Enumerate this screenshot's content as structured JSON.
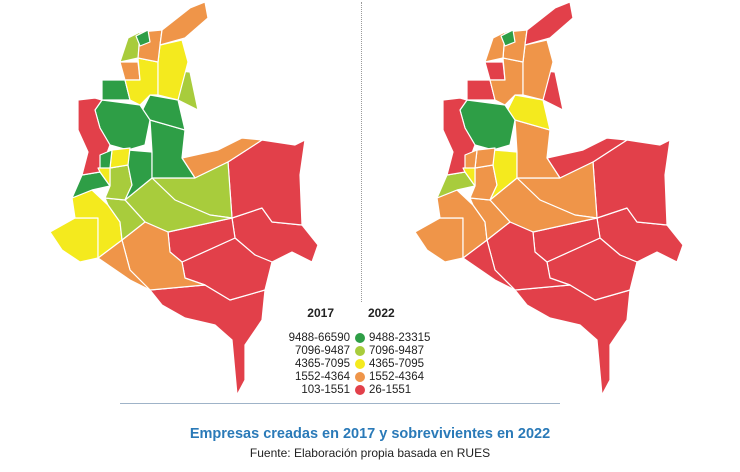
{
  "colors": {
    "dark_green": "#2e9e46",
    "light_green": "#a8cc3c",
    "yellow": "#f4ea1e",
    "orange": "#ef9549",
    "red": "#e2404a",
    "border": "#ffffff",
    "divider": "#9fb3c8",
    "caption": "#2a7ab8"
  },
  "legend": {
    "year_left": "2017",
    "year_right": "2022",
    "rows": [
      {
        "range_2017": "9488-66590",
        "range_2022": "9488-23315",
        "color": "dark_green"
      },
      {
        "range_2017": "7096-9487",
        "range_2022": "7096-9487",
        "color": "light_green"
      },
      {
        "range_2017": "4365-7095",
        "range_2022": "4365-7095",
        "color": "yellow"
      },
      {
        "range_2017": "1552-4364",
        "range_2022": "1552-4364",
        "color": "orange"
      },
      {
        "range_2017": "103-1551",
        "range_2022": "26-1551",
        "color": "red"
      }
    ]
  },
  "caption": {
    "title": "Empresas creadas en 2017 y sobrevivientes en 2022",
    "source": "Fuente: Elaboración propia basada en RUES"
  },
  "maps": {
    "map_2017": {
      "year": "2017",
      "regions": [
        {
          "name": "Amazonas",
          "color": "red"
        },
        {
          "name": "Guainía",
          "color": "red"
        },
        {
          "name": "Vaupés",
          "color": "red"
        },
        {
          "name": "Vichada",
          "color": "red"
        },
        {
          "name": "Guaviare",
          "color": "red"
        },
        {
          "name": "Arauca",
          "color": "orange"
        },
        {
          "name": "Casanare",
          "color": "light_green"
        },
        {
          "name": "Meta",
          "color": "light_green"
        },
        {
          "name": "Caquetá",
          "color": "orange"
        },
        {
          "name": "Putumayo",
          "color": "orange"
        },
        {
          "name": "Nariño",
          "color": "yellow"
        },
        {
          "name": "Cauca",
          "color": "yellow"
        },
        {
          "name": "Huila",
          "color": "light_green"
        },
        {
          "name": "Valle del Cauca",
          "color": "dark_green"
        },
        {
          "name": "Tolima",
          "color": "light_green"
        },
        {
          "name": "Cundinamarca",
          "color": "dark_green"
        },
        {
          "name": "Boyacá",
          "color": "dark_green"
        },
        {
          "name": "Santander",
          "color": "dark_green"
        },
        {
          "name": "Norte de Santander",
          "color": "light_green"
        },
        {
          "name": "Antioquia",
          "color": "dark_green"
        },
        {
          "name": "Chocó",
          "color": "red"
        },
        {
          "name": "Córdoba",
          "color": "dark_green"
        },
        {
          "name": "Sucre",
          "color": "orange"
        },
        {
          "name": "Bolívar",
          "color": "yellow"
        },
        {
          "name": "Cesar",
          "color": "yellow"
        },
        {
          "name": "Magdalena",
          "color": "orange"
        },
        {
          "name": "Atlántico",
          "color": "light_green"
        },
        {
          "name": "Atlántico norte",
          "color": "dark_green"
        },
        {
          "name": "La Guajira",
          "color": "orange"
        },
        {
          "name": "Caldas",
          "color": "yellow"
        },
        {
          "name": "Risaralda",
          "color": "dark_green"
        },
        {
          "name": "Quindío",
          "color": "yellow"
        }
      ]
    },
    "map_2022": {
      "year": "2022",
      "regions": [
        {
          "name": "Amazonas",
          "color": "red"
        },
        {
          "name": "Guainía",
          "color": "red"
        },
        {
          "name": "Vaupés",
          "color": "red"
        },
        {
          "name": "Vichada",
          "color": "red"
        },
        {
          "name": "Guaviare",
          "color": "red"
        },
        {
          "name": "Arauca",
          "color": "red"
        },
        {
          "name": "Casanare",
          "color": "orange"
        },
        {
          "name": "Meta",
          "color": "orange"
        },
        {
          "name": "Caquetá",
          "color": "red"
        },
        {
          "name": "Putumayo",
          "color": "red"
        },
        {
          "name": "Nariño",
          "color": "orange"
        },
        {
          "name": "Cauca",
          "color": "orange"
        },
        {
          "name": "Huila",
          "color": "orange"
        },
        {
          "name": "Valle del Cauca",
          "color": "light_green"
        },
        {
          "name": "Tolima",
          "color": "orange"
        },
        {
          "name": "Cundinamarca",
          "color": "yellow"
        },
        {
          "name": "Boyacá",
          "color": "orange"
        },
        {
          "name": "Santander",
          "color": "yellow"
        },
        {
          "name": "Norte de Santander",
          "color": "red"
        },
        {
          "name": "Antioquia",
          "color": "dark_green"
        },
        {
          "name": "Chocó",
          "color": "red"
        },
        {
          "name": "Córdoba",
          "color": "red"
        },
        {
          "name": "Sucre",
          "color": "red"
        },
        {
          "name": "Bolívar",
          "color": "orange"
        },
        {
          "name": "Cesar",
          "color": "orange"
        },
        {
          "name": "Magdalena",
          "color": "orange"
        },
        {
          "name": "Atlántico",
          "color": "orange"
        },
        {
          "name": "Atlántico norte",
          "color": "dark_green"
        },
        {
          "name": "La Guajira",
          "color": "red"
        },
        {
          "name": "Caldas",
          "color": "orange"
        },
        {
          "name": "Risaralda",
          "color": "orange"
        },
        {
          "name": "Quindío",
          "color": "yellow"
        }
      ]
    }
  }
}
